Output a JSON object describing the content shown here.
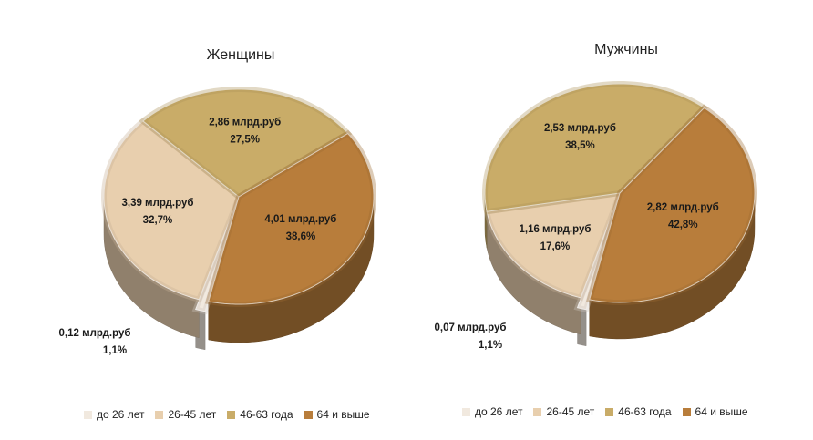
{
  "chart_data": [
    {
      "type": "pie",
      "title": "Женщины",
      "unit": "млрд.руб",
      "categories": [
        "до 26 лет",
        "26-45 лет",
        "46-63 года",
        "64 и выше"
      ],
      "values": [
        0.12,
        3.39,
        2.86,
        4.01
      ],
      "percents": [
        "1,1%",
        "32,7%",
        "27,5%",
        "38,6%"
      ],
      "labels": [
        "0,12 млрд.руб",
        "3,39 млрд.руб",
        "2,86 млрд.руб",
        "4,01 млрд.руб"
      ],
      "legend_position": "bottom",
      "exploded": "до 26 лет"
    },
    {
      "type": "pie",
      "title": "Мужчины",
      "unit": "млрд.руб",
      "categories": [
        "до 26 лет",
        "26-45 лет",
        "46-63 года",
        "64 и выше"
      ],
      "values": [
        0.07,
        1.16,
        2.53,
        2.82
      ],
      "percents": [
        "1,1%",
        "17,6%",
        "38,5%",
        "42,8%"
      ],
      "labels": [
        "0,07 млрд.руб",
        "1,16 млрд.руб",
        "2,53 млрд.руб",
        "2,82 млрд.руб"
      ],
      "legend_position": "bottom",
      "exploded": "до 26 лет"
    }
  ],
  "legend": [
    "до 26 лет",
    "26-45 лет",
    "46-63 года",
    "64 и выше"
  ],
  "colors": {
    "до 26 лет": "#f1e9df",
    "26-45 лет": "#e8cfae",
    "46-63 года": "#c9ac68",
    "64 и выше": "#b87d3b"
  }
}
